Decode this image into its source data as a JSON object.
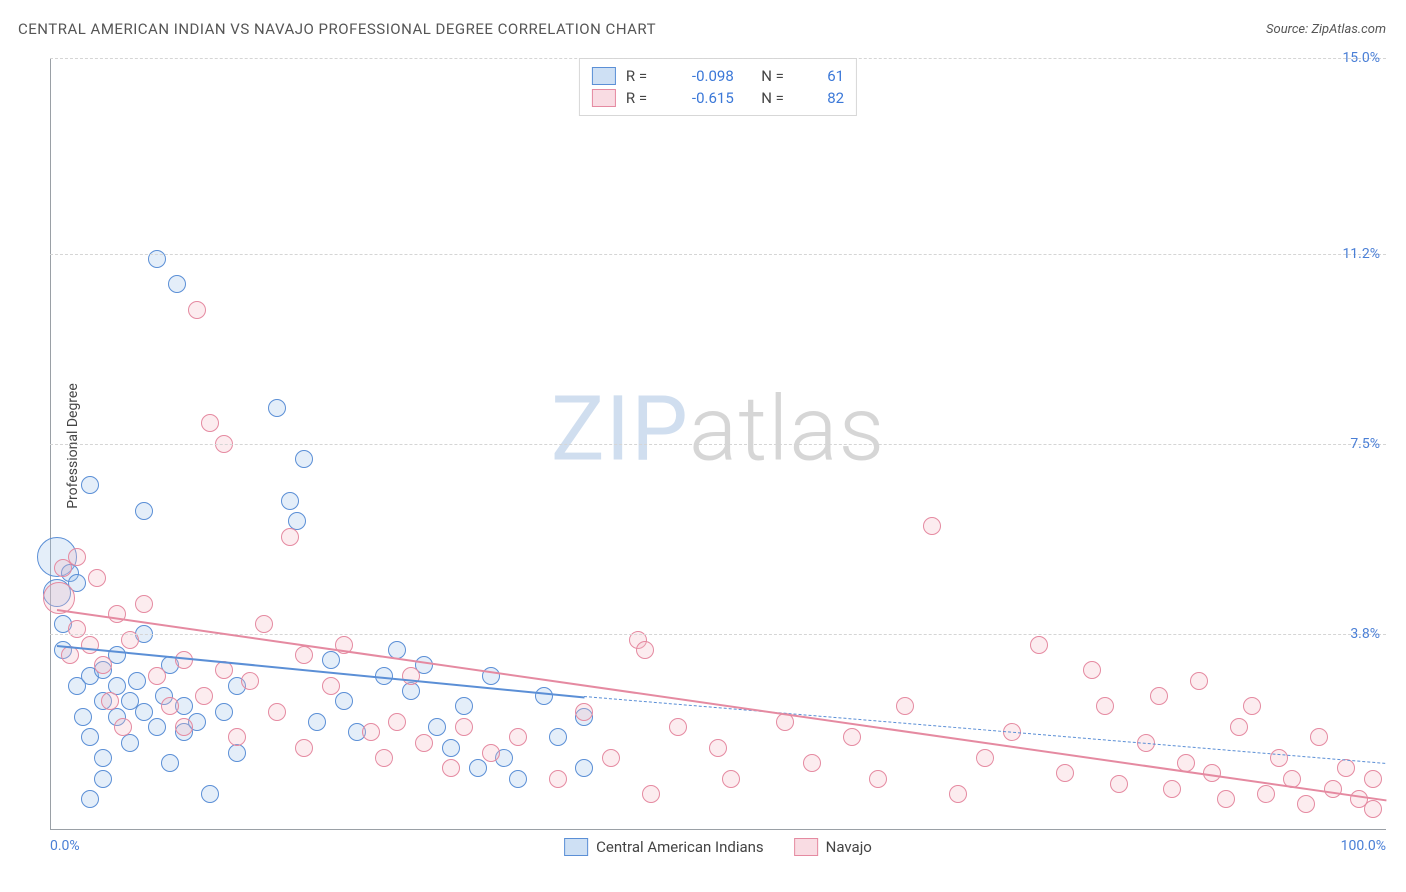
{
  "title": "CENTRAL AMERICAN INDIAN VS NAVAJO PROFESSIONAL DEGREE CORRELATION CHART",
  "source_label": "Source:",
  "source_value": "ZipAtlas.com",
  "ylabel": "Professional Degree",
  "watermark": {
    "part1": "ZIP",
    "part2": "atlas"
  },
  "chart": {
    "type": "scatter",
    "xlim": [
      0,
      100
    ],
    "ylim": [
      0,
      15
    ],
    "y_ticks": [
      {
        "v": 3.8,
        "label": "3.8%"
      },
      {
        "v": 7.5,
        "label": "7.5%"
      },
      {
        "v": 11.2,
        "label": "11.2%"
      },
      {
        "v": 15.0,
        "label": "15.0%"
      }
    ],
    "x_ticks": [
      {
        "v": 0,
        "label": "0.0%"
      },
      {
        "v": 100,
        "label": "100.0%"
      }
    ],
    "background_color": "#ffffff",
    "grid_color": "#d5d5d5",
    "axis_color": "#9aa0a6",
    "tick_label_color": "#4a7fd6",
    "marker_radius": 9,
    "marker_stroke_width": 1.2,
    "marker_fill_opacity": 0.28,
    "trend_line_width": 2,
    "series": [
      {
        "name": "Central American Indians",
        "color_stroke": "#5b8fd6",
        "color_fill": "#9ec1ea",
        "R": "-0.098",
        "N": "61",
        "trend": {
          "x1": 0.5,
          "y1": 3.6,
          "x2": 40,
          "y2": 2.6,
          "extend_to_x": 100,
          "extend_y": 1.3
        },
        "points": [
          {
            "x": 0.5,
            "y": 5.3,
            "r": 20
          },
          {
            "x": 0.5,
            "y": 4.6,
            "r": 14
          },
          {
            "x": 1,
            "y": 4.0
          },
          {
            "x": 1,
            "y": 3.5
          },
          {
            "x": 1.5,
            "y": 5.0
          },
          {
            "x": 2,
            "y": 4.8
          },
          {
            "x": 2,
            "y": 2.8
          },
          {
            "x": 2.5,
            "y": 2.2
          },
          {
            "x": 3,
            "y": 6.7
          },
          {
            "x": 3,
            "y": 3.0
          },
          {
            "x": 3,
            "y": 1.8
          },
          {
            "x": 3,
            "y": 0.6
          },
          {
            "x": 4,
            "y": 3.1
          },
          {
            "x": 4,
            "y": 2.5
          },
          {
            "x": 4,
            "y": 1.4
          },
          {
            "x": 4,
            "y": 1.0
          },
          {
            "x": 5,
            "y": 2.8
          },
          {
            "x": 5,
            "y": 2.2
          },
          {
            "x": 5,
            "y": 3.4
          },
          {
            "x": 6,
            "y": 2.5
          },
          {
            "x": 6,
            "y": 1.7
          },
          {
            "x": 6.5,
            "y": 2.9
          },
          {
            "x": 7,
            "y": 2.3
          },
          {
            "x": 7,
            "y": 6.2
          },
          {
            "x": 7,
            "y": 3.8
          },
          {
            "x": 8,
            "y": 11.1
          },
          {
            "x": 8,
            "y": 2.0
          },
          {
            "x": 8.5,
            "y": 2.6
          },
          {
            "x": 9,
            "y": 3.2
          },
          {
            "x": 9,
            "y": 1.3
          },
          {
            "x": 9.5,
            "y": 10.6
          },
          {
            "x": 10,
            "y": 2.4
          },
          {
            "x": 10,
            "y": 1.9
          },
          {
            "x": 11,
            "y": 2.1
          },
          {
            "x": 12,
            "y": 0.7
          },
          {
            "x": 13,
            "y": 2.3
          },
          {
            "x": 14,
            "y": 1.5
          },
          {
            "x": 14,
            "y": 2.8
          },
          {
            "x": 17,
            "y": 8.2
          },
          {
            "x": 18,
            "y": 6.4
          },
          {
            "x": 18.5,
            "y": 6.0
          },
          {
            "x": 19,
            "y": 7.2
          },
          {
            "x": 20,
            "y": 2.1
          },
          {
            "x": 21,
            "y": 3.3
          },
          {
            "x": 22,
            "y": 2.5
          },
          {
            "x": 23,
            "y": 1.9
          },
          {
            "x": 25,
            "y": 3.0
          },
          {
            "x": 26,
            "y": 3.5
          },
          {
            "x": 27,
            "y": 2.7
          },
          {
            "x": 28,
            "y": 3.2
          },
          {
            "x": 29,
            "y": 2.0
          },
          {
            "x": 30,
            "y": 1.6
          },
          {
            "x": 31,
            "y": 2.4
          },
          {
            "x": 32,
            "y": 1.2
          },
          {
            "x": 33,
            "y": 3.0
          },
          {
            "x": 34,
            "y": 1.4
          },
          {
            "x": 35,
            "y": 1.0
          },
          {
            "x": 37,
            "y": 2.6
          },
          {
            "x": 38,
            "y": 1.8
          },
          {
            "x": 40,
            "y": 2.2
          },
          {
            "x": 40,
            "y": 1.2
          }
        ]
      },
      {
        "name": "Navajo",
        "color_stroke": "#e58aa1",
        "color_fill": "#f4b9c7",
        "R": "-0.615",
        "N": "82",
        "trend": {
          "x1": 0.5,
          "y1": 4.3,
          "x2": 100,
          "y2": 0.6
        },
        "points": [
          {
            "x": 0.7,
            "y": 4.5,
            "r": 16
          },
          {
            "x": 1,
            "y": 5.1
          },
          {
            "x": 1.5,
            "y": 3.4
          },
          {
            "x": 2,
            "y": 5.3
          },
          {
            "x": 2,
            "y": 3.9
          },
          {
            "x": 3,
            "y": 3.6
          },
          {
            "x": 3.5,
            "y": 4.9
          },
          {
            "x": 4,
            "y": 3.2
          },
          {
            "x": 4.5,
            "y": 2.5
          },
          {
            "x": 5,
            "y": 4.2
          },
          {
            "x": 5.5,
            "y": 2.0
          },
          {
            "x": 6,
            "y": 3.7
          },
          {
            "x": 7,
            "y": 4.4
          },
          {
            "x": 8,
            "y": 3.0
          },
          {
            "x": 9,
            "y": 2.4
          },
          {
            "x": 10,
            "y": 3.3
          },
          {
            "x": 10,
            "y": 2.0
          },
          {
            "x": 11,
            "y": 10.1
          },
          {
            "x": 11.5,
            "y": 2.6
          },
          {
            "x": 12,
            "y": 7.9
          },
          {
            "x": 13,
            "y": 7.5
          },
          {
            "x": 13,
            "y": 3.1
          },
          {
            "x": 14,
            "y": 1.8
          },
          {
            "x": 15,
            "y": 2.9
          },
          {
            "x": 16,
            "y": 4.0
          },
          {
            "x": 17,
            "y": 2.3
          },
          {
            "x": 18,
            "y": 5.7
          },
          {
            "x": 19,
            "y": 3.4
          },
          {
            "x": 19,
            "y": 1.6
          },
          {
            "x": 21,
            "y": 2.8
          },
          {
            "x": 22,
            "y": 3.6
          },
          {
            "x": 24,
            "y": 1.9
          },
          {
            "x": 25,
            "y": 1.4
          },
          {
            "x": 26,
            "y": 2.1
          },
          {
            "x": 27,
            "y": 3.0
          },
          {
            "x": 28,
            "y": 1.7
          },
          {
            "x": 30,
            "y": 1.2
          },
          {
            "x": 31,
            "y": 2.0
          },
          {
            "x": 33,
            "y": 1.5
          },
          {
            "x": 35,
            "y": 1.8
          },
          {
            "x": 38,
            "y": 1.0
          },
          {
            "x": 40,
            "y": 2.3
          },
          {
            "x": 42,
            "y": 1.4
          },
          {
            "x": 44,
            "y": 3.7
          },
          {
            "x": 44.5,
            "y": 3.5
          },
          {
            "x": 45,
            "y": 0.7
          },
          {
            "x": 47,
            "y": 2.0
          },
          {
            "x": 50,
            "y": 1.6
          },
          {
            "x": 51,
            "y": 1.0
          },
          {
            "x": 55,
            "y": 2.1
          },
          {
            "x": 57,
            "y": 1.3
          },
          {
            "x": 60,
            "y": 1.8
          },
          {
            "x": 62,
            "y": 1.0
          },
          {
            "x": 64,
            "y": 2.4
          },
          {
            "x": 66,
            "y": 5.9
          },
          {
            "x": 68,
            "y": 0.7
          },
          {
            "x": 70,
            "y": 1.4
          },
          {
            "x": 72,
            "y": 1.9
          },
          {
            "x": 74,
            "y": 3.6
          },
          {
            "x": 76,
            "y": 1.1
          },
          {
            "x": 78,
            "y": 3.1
          },
          {
            "x": 79,
            "y": 2.4
          },
          {
            "x": 80,
            "y": 0.9
          },
          {
            "x": 82,
            "y": 1.7
          },
          {
            "x": 83,
            "y": 2.6
          },
          {
            "x": 84,
            "y": 0.8
          },
          {
            "x": 85,
            "y": 1.3
          },
          {
            "x": 86,
            "y": 2.9
          },
          {
            "x": 87,
            "y": 1.1
          },
          {
            "x": 88,
            "y": 0.6
          },
          {
            "x": 89,
            "y": 2.0
          },
          {
            "x": 90,
            "y": 2.4
          },
          {
            "x": 91,
            "y": 0.7
          },
          {
            "x": 92,
            "y": 1.4
          },
          {
            "x": 93,
            "y": 1.0
          },
          {
            "x": 94,
            "y": 0.5
          },
          {
            "x": 95,
            "y": 1.8
          },
          {
            "x": 96,
            "y": 0.8
          },
          {
            "x": 97,
            "y": 1.2
          },
          {
            "x": 98,
            "y": 0.6
          },
          {
            "x": 99,
            "y": 1.0
          },
          {
            "x": 99,
            "y": 0.4
          }
        ]
      }
    ],
    "legend_top": {
      "R_label": "R =",
      "N_label": "N ="
    },
    "legend_bottom": [
      {
        "series": 0
      },
      {
        "series": 1
      }
    ]
  }
}
